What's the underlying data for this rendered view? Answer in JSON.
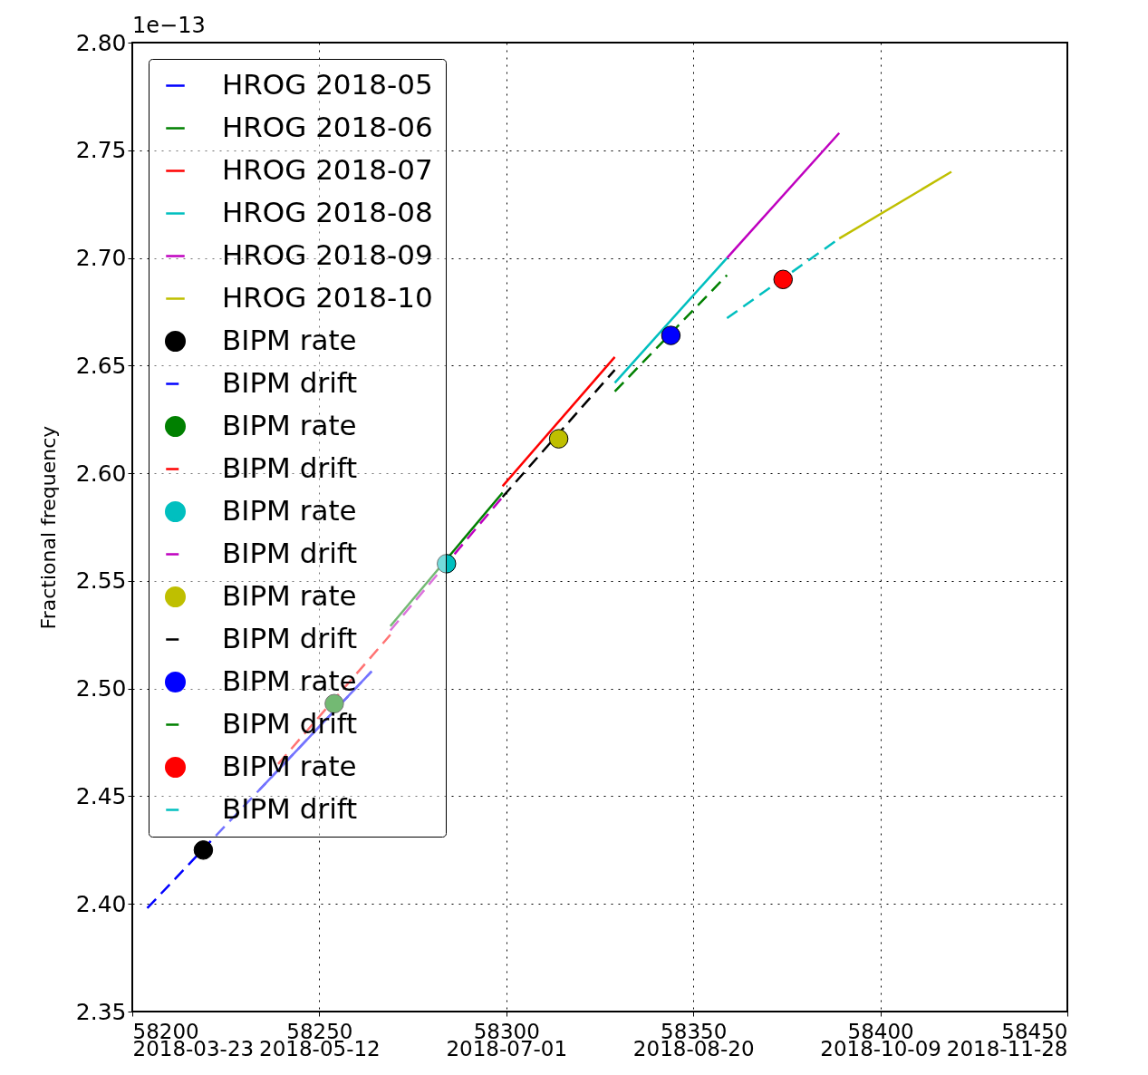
{
  "chart_data": {
    "type": "line",
    "ylabel": "Fractional frequency",
    "annotations": [
      "1e−13"
    ],
    "xlim": [
      58200,
      58450
    ],
    "ylim": [
      2.35,
      2.8
    ],
    "xticks": [
      58200,
      58250,
      58300,
      58350,
      58400,
      58450
    ],
    "x2lim": [
      "2018-03-23",
      "2018-11-28"
    ],
    "x2ticks": [
      "2018-03-23",
      "2018-05-12",
      "2018-07-01",
      "2018-08-20",
      "2018-10-09",
      "2018-11-28"
    ],
    "yticks": [
      {
        "value": 2.35,
        "label": "2.35"
      },
      {
        "value": 2.4,
        "label": "2.40"
      },
      {
        "value": 2.45,
        "label": "2.45"
      },
      {
        "value": 2.5,
        "label": "2.50"
      },
      {
        "value": 2.55,
        "label": "2.55"
      },
      {
        "value": 2.6,
        "label": "2.60"
      },
      {
        "value": 2.65,
        "label": "2.65"
      },
      {
        "value": 2.7,
        "label": "2.70"
      },
      {
        "value": 2.75,
        "label": "2.75"
      },
      {
        "value": 2.8,
        "label": "2.80"
      }
    ],
    "grid": true,
    "legend": "top left",
    "series": [
      {
        "name": "HROG 2018-05",
        "line_style": "solid",
        "color": "#0000ff",
        "x": [
          58234,
          58264
        ],
        "values": [
          2.453,
          2.508
        ]
      },
      {
        "name": "HROG 2018-06",
        "line_style": "solid",
        "color": "#008000",
        "x": [
          58269,
          58299
        ],
        "values": [
          2.529,
          2.591
        ]
      },
      {
        "name": "HROG 2018-07",
        "line_style": "solid",
        "color": "#ff0000",
        "x": [
          58299,
          58329
        ],
        "values": [
          2.594,
          2.654
        ]
      },
      {
        "name": "HROG 2018-08",
        "line_style": "solid",
        "color": "#00bfbf",
        "x": [
          58329,
          58359
        ],
        "values": [
          2.642,
          2.7
        ]
      },
      {
        "name": "HROG 2018-09",
        "line_style": "solid",
        "color": "#bf00bf",
        "x": [
          58359,
          58389
        ],
        "values": [
          2.7,
          2.758
        ]
      },
      {
        "name": "HROG 2018-10",
        "line_style": "solid",
        "color": "#bfbf00",
        "x": [
          58389,
          58419
        ],
        "values": [
          2.709,
          2.74
        ]
      },
      {
        "name": "BIPM rate",
        "type": "scatter",
        "marker": "circle",
        "color": "#000000",
        "x": [
          58219
        ],
        "values": [
          2.425
        ]
      },
      {
        "name": "BIPM drift",
        "type": "line",
        "line_style": "dashed",
        "color": "#0000ff",
        "x": [
          58204,
          58264
        ],
        "values": [
          2.398,
          2.508
        ]
      },
      {
        "name": "BIPM rate",
        "type": "scatter",
        "marker": "circle",
        "color": "#008000",
        "x": [
          58254
        ],
        "values": [
          2.493
        ]
      },
      {
        "name": "BIPM drift",
        "type": "line",
        "line_style": "dashed",
        "color": "#ff0000",
        "x": [
          58239,
          58269
        ],
        "values": [
          2.465,
          2.525
        ]
      },
      {
        "name": "BIPM rate",
        "type": "scatter",
        "marker": "circle",
        "color": "#00bfbf",
        "x": [
          58284
        ],
        "values": [
          2.558
        ]
      },
      {
        "name": "BIPM drift",
        "type": "line",
        "line_style": "dashed",
        "color": "#bf00bf",
        "x": [
          58269,
          58299
        ],
        "values": [
          2.527,
          2.589
        ]
      },
      {
        "name": "BIPM rate",
        "type": "scatter",
        "marker": "circle",
        "color": "#bfbf00",
        "x": [
          58314
        ],
        "values": [
          2.616
        ]
      },
      {
        "name": "BIPM drift",
        "type": "line",
        "line_style": "dashed",
        "color": "#000000",
        "x": [
          58299,
          58329
        ],
        "values": [
          2.589,
          2.648
        ]
      },
      {
        "name": "BIPM rate",
        "type": "scatter",
        "marker": "circle",
        "color": "#0000ff",
        "x": [
          58344
        ],
        "values": [
          2.664
        ]
      },
      {
        "name": "BIPM drift",
        "type": "line",
        "line_style": "dashed",
        "color": "#008000",
        "x": [
          58329,
          58359
        ],
        "values": [
          2.638,
          2.692
        ]
      },
      {
        "name": "BIPM rate",
        "type": "scatter",
        "marker": "circle",
        "color": "#ff0000",
        "x": [
          58374
        ],
        "values": [
          2.69
        ]
      },
      {
        "name": "BIPM drift",
        "type": "line",
        "line_style": "dashed",
        "color": "#00bfbf",
        "x": [
          58359,
          58389
        ],
        "values": [
          2.672,
          2.709
        ]
      }
    ]
  }
}
